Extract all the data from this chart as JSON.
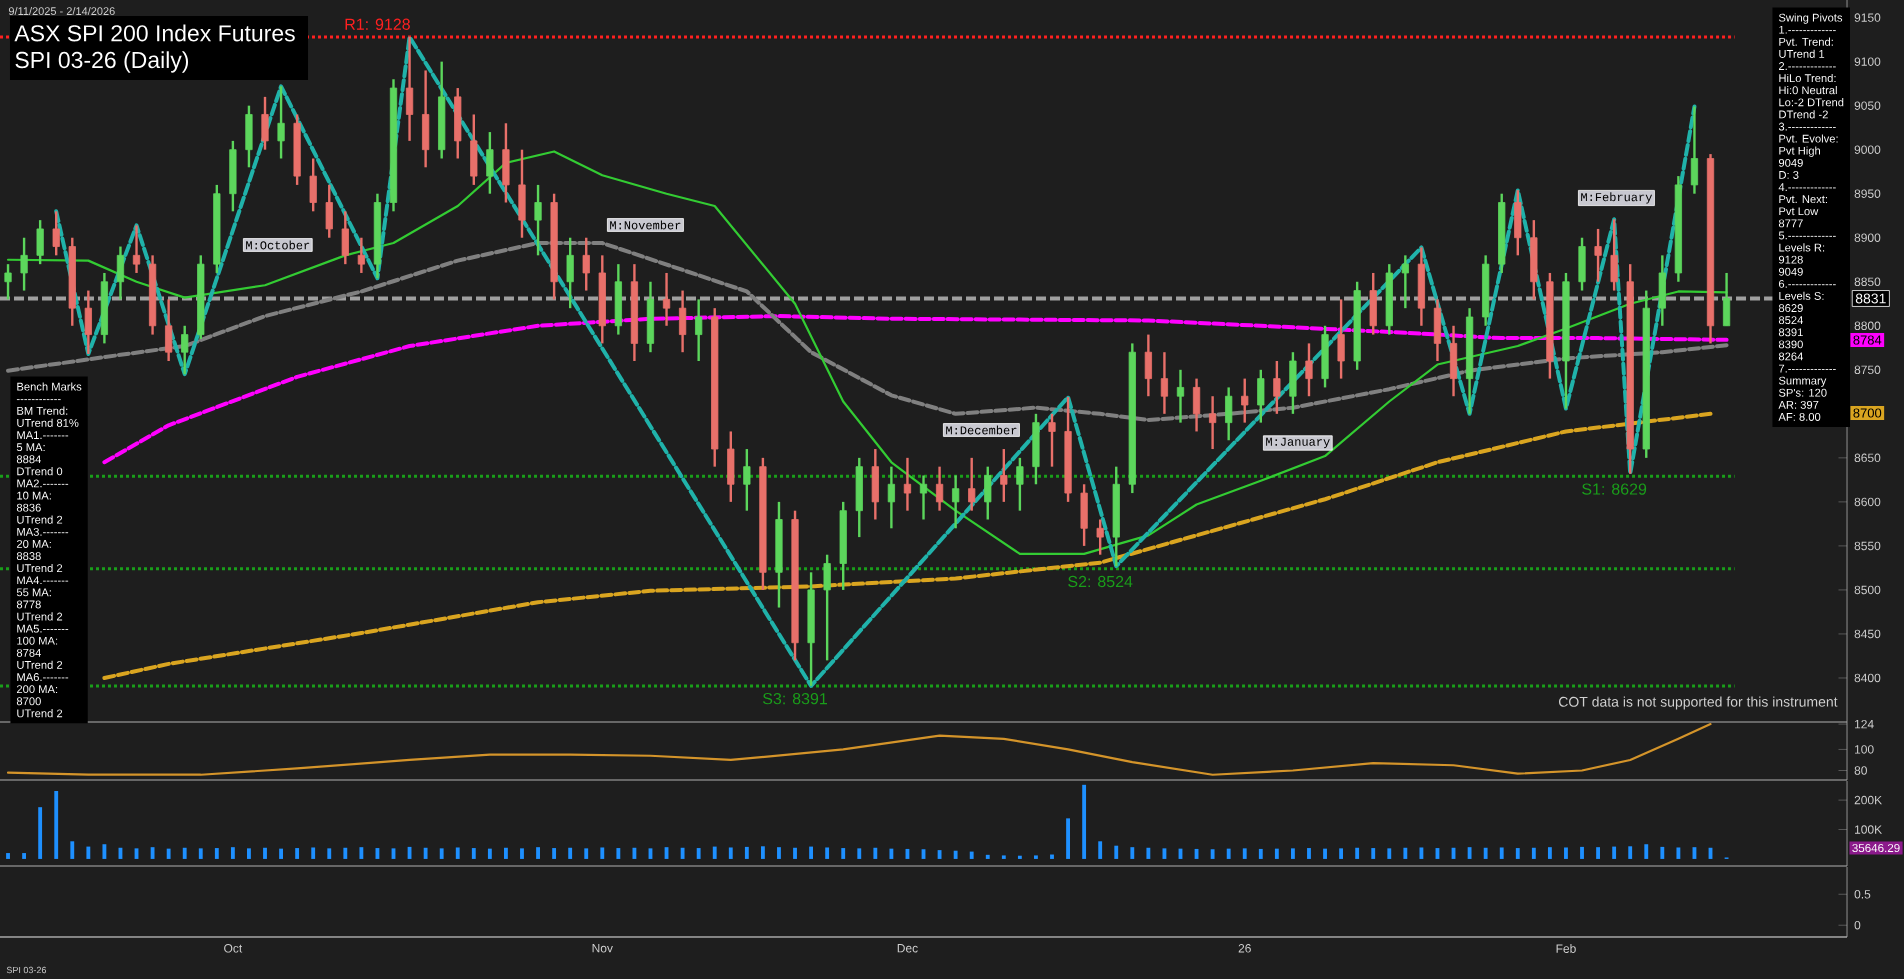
{
  "chart_data": [
    {
      "type": "candlestick",
      "title": "ASX SPI 200 Index Futures",
      "subtitle": "SPI 03-26 (Daily)",
      "categories": [
        null,
        null,
        null,
        null,
        null,
        null,
        null,
        null,
        null,
        null,
        null,
        null,
        null,
        null,
        null,
        null,
        null,
        null,
        null,
        null,
        null,
        null,
        null,
        null,
        null,
        null,
        null,
        null,
        null,
        null,
        null,
        null,
        null,
        null,
        null,
        null,
        null,
        null,
        null,
        null,
        null,
        null,
        null,
        null,
        null,
        null,
        null,
        null,
        null,
        null,
        null,
        null,
        null,
        null,
        null,
        null,
        null,
        null,
        null,
        null,
        null,
        null,
        null,
        null,
        null,
        null,
        null,
        null,
        null,
        null,
        null,
        null,
        null,
        null,
        null,
        null,
        null,
        null,
        null,
        null,
        null,
        null,
        null,
        null,
        null,
        null,
        null,
        null,
        null,
        null,
        null,
        null,
        null,
        null,
        null,
        null,
        null,
        null,
        null,
        null,
        null,
        null,
        null,
        null,
        null,
        null,
        null,
        null,
        null,
        null,
        null,
        null,
        null,
        null,
        null
      ],
      "ohlc": [
        [
          8850,
          8870,
          8830,
          8860
        ],
        [
          8860,
          8900,
          8840,
          8880
        ],
        [
          8880,
          8920,
          8870,
          8910
        ],
        [
          8910,
          8930,
          8880,
          8890
        ],
        [
          8890,
          8900,
          8800,
          8820
        ],
        [
          8820,
          8840,
          8768,
          8790
        ],
        [
          8790,
          8860,
          8780,
          8850
        ],
        [
          8850,
          8890,
          8830,
          8880
        ],
        [
          8880,
          8914,
          8860,
          8870
        ],
        [
          8870,
          8880,
          8790,
          8800
        ],
        [
          8800,
          8830,
          8760,
          8770
        ],
        [
          8770,
          8800,
          8745,
          8790
        ],
        [
          8790,
          8880,
          8785,
          8870
        ],
        [
          8870,
          8960,
          8860,
          8950
        ],
        [
          8950,
          9010,
          8930,
          9000
        ],
        [
          9000,
          9050,
          8980,
          9040
        ],
        [
          9040,
          9060,
          9000,
          9010
        ],
        [
          9010,
          9072,
          8990,
          9030
        ],
        [
          9030,
          9040,
          8960,
          8970
        ],
        [
          8970,
          8990,
          8930,
          8940
        ],
        [
          8940,
          8960,
          8900,
          8910
        ],
        [
          8910,
          8930,
          8870,
          8880
        ],
        [
          8880,
          8900,
          8860,
          8870
        ],
        [
          8870,
          8950,
          8854,
          8940
        ],
        [
          8940,
          9080,
          8930,
          9070
        ],
        [
          9070,
          9128,
          9010,
          9040
        ],
        [
          9040,
          9090,
          8980,
          9000
        ],
        [
          9000,
          9100,
          8990,
          9060
        ],
        [
          9060,
          9070,
          8990,
          9010
        ],
        [
          9010,
          9040,
          8960,
          8970
        ],
        [
          8970,
          9020,
          8950,
          9000
        ],
        [
          9000,
          9030,
          8940,
          8960
        ],
        [
          8960,
          9000,
          8900,
          8920
        ],
        [
          8920,
          8960,
          8880,
          8940
        ],
        [
          8940,
          8950,
          8830,
          8850
        ],
        [
          8850,
          8900,
          8820,
          8880
        ],
        [
          8880,
          8900,
          8840,
          8860
        ],
        [
          8860,
          8880,
          8780,
          8800
        ],
        [
          8800,
          8870,
          8790,
          8850
        ],
        [
          8850,
          8870,
          8760,
          8780
        ],
        [
          8780,
          8850,
          8770,
          8830
        ],
        [
          8830,
          8860,
          8800,
          8820
        ],
        [
          8820,
          8840,
          8770,
          8790
        ],
        [
          8790,
          8830,
          8760,
          8810
        ],
        [
          8810,
          8820,
          8640,
          8660
        ],
        [
          8660,
          8680,
          8600,
          8620
        ],
        [
          8620,
          8660,
          8590,
          8640
        ],
        [
          8640,
          8650,
          8500,
          8520
        ],
        [
          8520,
          8600,
          8480,
          8580
        ],
        [
          8580,
          8590,
          8420,
          8440
        ],
        [
          8440,
          8520,
          8391,
          8500
        ],
        [
          8500,
          8540,
          8420,
          8530
        ],
        [
          8530,
          8600,
          8500,
          8590
        ],
        [
          8590,
          8650,
          8560,
          8640
        ],
        [
          8640,
          8660,
          8580,
          8600
        ],
        [
          8600,
          8640,
          8570,
          8620
        ],
        [
          8620,
          8650,
          8590,
          8610
        ],
        [
          8610,
          8630,
          8580,
          8620
        ],
        [
          8620,
          8640,
          8590,
          8600
        ],
        [
          8600,
          8630,
          8570,
          8615
        ],
        [
          8615,
          8650,
          8590,
          8600
        ],
        [
          8600,
          8640,
          8580,
          8630
        ],
        [
          8630,
          8660,
          8600,
          8620
        ],
        [
          8620,
          8650,
          8590,
          8640
        ],
        [
          8640,
          8700,
          8620,
          8690
        ],
        [
          8690,
          8700,
          8640,
          8680
        ],
        [
          8680,
          8719,
          8600,
          8610
        ],
        [
          8610,
          8620,
          8550,
          8570
        ],
        [
          8570,
          8580,
          8540,
          8560
        ],
        [
          8560,
          8640,
          8527,
          8620
        ],
        [
          8620,
          8780,
          8610,
          8770
        ],
        [
          8770,
          8790,
          8720,
          8740
        ],
        [
          8740,
          8770,
          8700,
          8720
        ],
        [
          8720,
          8750,
          8690,
          8730
        ],
        [
          8730,
          8740,
          8680,
          8700
        ],
        [
          8700,
          8720,
          8660,
          8690
        ],
        [
          8690,
          8730,
          8670,
          8720
        ],
        [
          8720,
          8740,
          8690,
          8710
        ],
        [
          8710,
          8750,
          8690,
          8740
        ],
        [
          8740,
          8760,
          8700,
          8720
        ],
        [
          8720,
          8770,
          8700,
          8760
        ],
        [
          8760,
          8780,
          8720,
          8740
        ],
        [
          8740,
          8800,
          8730,
          8790
        ],
        [
          8790,
          8830,
          8740,
          8760
        ],
        [
          8760,
          8850,
          8750,
          8840
        ],
        [
          8840,
          8860,
          8790,
          8800
        ],
        [
          8800,
          8870,
          8790,
          8860
        ],
        [
          8860,
          8880,
          8820,
          8870
        ],
        [
          8870,
          8889,
          8800,
          8820
        ],
        [
          8820,
          8830,
          8760,
          8780
        ],
        [
          8780,
          8800,
          8720,
          8740
        ],
        [
          8740,
          8820,
          8700,
          8810
        ],
        [
          8810,
          8880,
          8800,
          8870
        ],
        [
          8870,
          8950,
          8860,
          8940
        ],
        [
          8940,
          8954,
          8880,
          8900
        ],
        [
          8900,
          8920,
          8830,
          8850
        ],
        [
          8850,
          8860,
          8740,
          8760
        ],
        [
          8760,
          8860,
          8706,
          8850
        ],
        [
          8850,
          8900,
          8840,
          8890
        ],
        [
          8890,
          8910,
          8850,
          8880
        ],
        [
          8880,
          8921,
          8840,
          8850
        ],
        [
          8850,
          8870,
          8632,
          8660
        ],
        [
          8660,
          8840,
          8650,
          8820
        ],
        [
          8820,
          8880,
          8800,
          8860
        ],
        [
          8860,
          8970,
          8850,
          8960
        ],
        [
          8960,
          9049,
          8950,
          8990
        ],
        [
          8990,
          8995,
          8780,
          8800
        ],
        [
          8800,
          8860,
          8800,
          8831
        ],
        null,
        null,
        null,
        null,
        null,
        null,
        null
      ],
      "ylim": [
        8350,
        9170
      ],
      "yticks": [
        8400,
        8450,
        8500,
        8550,
        8600,
        8650,
        8750,
        8800,
        8850,
        8900,
        8950,
        9000,
        9050,
        9100,
        9150
      ],
      "tick_labels": "y",
      "series": [
        {
          "type": "line",
          "color": "#daa520",
          "line_style": "dashed",
          "values": [
            null,
            null,
            null,
            null,
            null,
            null,
            8400,
            null,
            null,
            null,
            8416,
            null,
            null,
            null,
            null,
            null,
            null,
            null,
            null,
            null,
            null,
            null,
            8451,
            null,
            null,
            null,
            null,
            null,
            null,
            null,
            null,
            null,
            null,
            8486,
            null,
            null,
            null,
            null,
            null,
            null,
            8499,
            null,
            null,
            null,
            null,
            null,
            null,
            null,
            null,
            null,
            8504,
            null,
            null,
            null,
            null,
            null,
            null,
            null,
            null,
            8513,
            null,
            null,
            null,
            null,
            null,
            null,
            null,
            null,
            8531,
            null,
            null,
            null,
            null,
            null,
            8562,
            null,
            null,
            null,
            null,
            null,
            null,
            null,
            8603,
            null,
            null,
            null,
            null,
            null,
            null,
            8645,
            null,
            null,
            null,
            null,
            null,
            null,
            null,
            8680,
            null,
            null,
            null,
            null,
            null,
            null,
            null,
            null,
            8700,
            null,
            null,
            null,
            null,
            null,
            null,
            null,
            null
          ]
        },
        {
          "type": "line",
          "color": "#ff00ff",
          "line_style": "dashed",
          "values": [
            null,
            null,
            null,
            null,
            null,
            null,
            8645,
            null,
            null,
            null,
            8687,
            null,
            null,
            null,
            null,
            null,
            null,
            null,
            8742,
            null,
            null,
            null,
            null,
            null,
            null,
            8777,
            null,
            null,
            null,
            null,
            null,
            null,
            null,
            8800,
            null,
            null,
            null,
            null,
            null,
            null,
            8808,
            null,
            null,
            null,
            null,
            null,
            null,
            null,
            8811,
            null,
            null,
            null,
            null,
            null,
            null,
            8808,
            null,
            null,
            null,
            null,
            null,
            null,
            null,
            8807,
            null,
            null,
            null,
            null,
            null,
            null,
            null,
            8806,
            null,
            null,
            null,
            null,
            null,
            null,
            8800,
            null,
            null,
            null,
            null,
            null,
            null,
            null,
            8793,
            null,
            null,
            null,
            null,
            null,
            null,
            8786,
            null,
            null,
            null,
            null,
            null,
            8786,
            null,
            null,
            null,
            null,
            null,
            null,
            null,
            8784,
            null,
            null,
            null,
            null,
            null,
            null,
            null
          ]
        },
        {
          "type": "line",
          "color": "#808080",
          "line_style": "dashed",
          "values": [
            8749,
            null,
            null,
            null,
            null,
            null,
            null,
            8767,
            null,
            null,
            null,
            8777,
            null,
            null,
            null,
            null,
            8811,
            null,
            null,
            null,
            null,
            null,
            8839,
            null,
            null,
            null,
            null,
            null,
            8874,
            null,
            null,
            null,
            null,
            8894,
            null,
            null,
            null,
            8894,
            null,
            null,
            null,
            null,
            null,
            null,
            null,
            null,
            8839,
            null,
            null,
            null,
            8770,
            null,
            null,
            null,
            null,
            8721,
            null,
            null,
            null,
            8700,
            null,
            null,
            null,
            null,
            8707,
            null,
            null,
            null,
            8700,
            null,
            null,
            8693,
            null,
            null,
            null,
            null,
            8700,
            null,
            null,
            null,
            8707,
            null,
            null,
            null,
            null,
            null,
            8728,
            null,
            null,
            null,
            null,
            8749,
            null,
            null,
            null,
            null,
            null,
            8763,
            null,
            null,
            null,
            null,
            null,
            8770,
            null,
            null,
            null,
            8778,
            null,
            null,
            null,
            null,
            null,
            null,
            null
          ]
        },
        {
          "type": "line",
          "color": "#33cc33",
          "line_style": "solid",
          "values": [
            8875,
            null,
            null,
            null,
            null,
            8874,
            null,
            null,
            8850,
            null,
            null,
            8832,
            null,
            null,
            null,
            null,
            8846,
            null,
            null,
            null,
            null,
            8880,
            null,
            null,
            8894,
            null,
            null,
            null,
            8936,
            null,
            null,
            8985,
            null,
            null,
            8998,
            null,
            null,
            8971,
            null,
            null,
            null,
            8950,
            null,
            null,
            8936,
            null,
            null,
            null,
            null,
            8825,
            null,
            null,
            8714,
            null,
            null,
            8645,
            null,
            null,
            null,
            8590,
            null,
            null,
            null,
            8541,
            null,
            null,
            null,
            8541,
            null,
            null,
            null,
            8562,
            null,
            null,
            8597,
            null,
            null,
            null,
            8624,
            null,
            null,
            null,
            8652,
            null,
            null,
            null,
            8714,
            null,
            null,
            8756,
            null,
            null,
            null,
            null,
            8777,
            null,
            null,
            8797,
            null,
            null,
            null,
            8825,
            null,
            null,
            8839,
            null,
            null,
            8838,
            null,
            null,
            null,
            null,
            null,
            null,
            null
          ]
        },
        {
          "type": "line",
          "color": "#20b2aa",
          "line_style": "dashed",
          "values": [
            null,
            null,
            null,
            8930,
            null,
            8768,
            null,
            null,
            8914,
            null,
            null,
            8745,
            null,
            null,
            null,
            null,
            null,
            9072,
            null,
            null,
            null,
            null,
            null,
            8854,
            null,
            9128,
            null,
            null,
            null,
            null,
            null,
            null,
            null,
            null,
            null,
            null,
            null,
            null,
            null,
            null,
            null,
            null,
            null,
            null,
            null,
            null,
            null,
            null,
            null,
            null,
            8391,
            null,
            null,
            null,
            null,
            null,
            null,
            null,
            null,
            null,
            null,
            null,
            null,
            null,
            null,
            null,
            8719,
            null,
            null,
            8527,
            null,
            null,
            null,
            null,
            null,
            null,
            null,
            null,
            null,
            null,
            null,
            null,
            null,
            null,
            null,
            null,
            null,
            null,
            8889,
            null,
            null,
            8700,
            null,
            null,
            8954,
            null,
            null,
            8706,
            null,
            null,
            8921,
            8632,
            null,
            null,
            null,
            9049,
            null,
            null,
            null,
            null,
            null,
            null,
            null,
            null,
            null
          ]
        }
      ],
      "ref_lines": [
        {
          "axis": "y",
          "value": 9128,
          "label": "R1: 9128",
          "color": "#ff2020",
          "line_style": "dotted"
        },
        {
          "axis": "y",
          "value": 8629,
          "label": "S1: 8629",
          "color": "#1a9e1a",
          "line_style": "dotted"
        },
        {
          "axis": "y",
          "value": 8524,
          "label": "S2: 8524",
          "color": "#1a9e1a",
          "line_style": "dotted"
        },
        {
          "axis": "y",
          "value": 8391,
          "label": "S3: 8391",
          "color": "#1a9e1a",
          "line_style": "dotted"
        },
        {
          "axis": "y",
          "value": 8831,
          "label": "8831",
          "color": "#a0a0a0",
          "line_style": "dashed"
        }
      ],
      "annotations": [
        "9/11/2025 - 2/14/2026",
        "COT data is not supported for this instrument",
        "SPI 03-26",
        "M:October",
        "M:November",
        "M:December",
        "M:January",
        "M:February",
        "8784",
        "8700"
      ]
    },
    {
      "type": "line",
      "categories": [
        null,
        null,
        null,
        null,
        null,
        null,
        null,
        null,
        null,
        null,
        null,
        null,
        null,
        null,
        null,
        null,
        null,
        null,
        null,
        null,
        null,
        null,
        null,
        null,
        null,
        null,
        null,
        null,
        null,
        null,
        null,
        null,
        null,
        null,
        null,
        null,
        null,
        null,
        null,
        null,
        null,
        null,
        null,
        null,
        null,
        null,
        null,
        null,
        null,
        null,
        null,
        null,
        null,
        null,
        null,
        null,
        null,
        null,
        null,
        null,
        null,
        null,
        null,
        null,
        null,
        null,
        null,
        null,
        null,
        null,
        null,
        null,
        null,
        null,
        null,
        null,
        null,
        null,
        null,
        null,
        null,
        null,
        null,
        null,
        null,
        null,
        null,
        null,
        null,
        null,
        null,
        null,
        null,
        null,
        null,
        null,
        null,
        null,
        null,
        null,
        null,
        null,
        null,
        null,
        null,
        null,
        null,
        null,
        null,
        null,
        null,
        null,
        null,
        null,
        null
      ],
      "ylim": [
        71,
        126
      ],
      "yticks": [
        80,
        100,
        124
      ],
      "tick_labels": "y",
      "series": [
        {
          "type": "line",
          "color": "#d4942a",
          "values": [
            78,
            null,
            null,
            null,
            null,
            76,
            null,
            null,
            null,
            null,
            null,
            null,
            76,
            null,
            null,
            null,
            null,
            null,
            82,
            null,
            null,
            null,
            null,
            null,
            null,
            90,
            null,
            null,
            null,
            null,
            95,
            null,
            null,
            null,
            null,
            95,
            null,
            null,
            null,
            null,
            94,
            null,
            null,
            null,
            null,
            90,
            null,
            null,
            null,
            null,
            null,
            null,
            100,
            null,
            null,
            null,
            null,
            null,
            113,
            null,
            null,
            null,
            110,
            null,
            null,
            null,
            100,
            null,
            null,
            null,
            88,
            null,
            null,
            null,
            null,
            76,
            null,
            null,
            null,
            null,
            80,
            null,
            null,
            null,
            null,
            87,
            null,
            null,
            null,
            null,
            85,
            null,
            null,
            null,
            77,
            null,
            null,
            null,
            80,
            null,
            null,
            90,
            null,
            null,
            110,
            null,
            124,
            null,
            null,
            null,
            null,
            null,
            null,
            null,
            null
          ]
        }
      ]
    },
    {
      "type": "bar",
      "categories": [
        null,
        null,
        null,
        null,
        null,
        null,
        null,
        null,
        null,
        null,
        null,
        null,
        null,
        null,
        null,
        null,
        null,
        null,
        null,
        null,
        null,
        null,
        null,
        null,
        null,
        null,
        null,
        null,
        null,
        null,
        null,
        null,
        null,
        null,
        null,
        null,
        null,
        null,
        null,
        null,
        null,
        null,
        null,
        null,
        null,
        null,
        null,
        null,
        null,
        null,
        null,
        null,
        null,
        null,
        null,
        null,
        null,
        null,
        null,
        null,
        null,
        null,
        null,
        null,
        null,
        null,
        null,
        null,
        null,
        null,
        null,
        null,
        null,
        null,
        null,
        null,
        null,
        null,
        null,
        null,
        null,
        null,
        null,
        null,
        null,
        null,
        null,
        null,
        null,
        null,
        null,
        null,
        null,
        null,
        null,
        null,
        null,
        null,
        null,
        null,
        null,
        null,
        null,
        null,
        null,
        null,
        null,
        null,
        null,
        null,
        null,
        null,
        null,
        null,
        null
      ],
      "values": [
        20000,
        20000,
        176000,
        231000,
        60000,
        42000,
        50000,
        38000,
        36000,
        40000,
        35000,
        38000,
        36000,
        37000,
        40000,
        36000,
        38000,
        35000,
        37000,
        39000,
        36000,
        38000,
        40000,
        37000,
        36000,
        41000,
        38000,
        36000,
        39000,
        37000,
        35000,
        38000,
        36000,
        40000,
        37000,
        38000,
        36000,
        39000,
        37000,
        38000,
        36000,
        40000,
        38000,
        37000,
        42000,
        39000,
        41000,
        43000,
        40000,
        38000,
        42000,
        39000,
        37000,
        36000,
        38000,
        35000,
        34000,
        33000,
        30000,
        28000,
        25000,
        14000,
        12000,
        11000,
        12000,
        15000,
        138000,
        252000,
        60000,
        45000,
        40000,
        38000,
        36000,
        35000,
        34000,
        33000,
        35000,
        36000,
        34000,
        35000,
        36000,
        37000,
        35000,
        36000,
        38000,
        37000,
        36000,
        38000,
        39000,
        37000,
        38000,
        40000,
        38000,
        39000,
        37000,
        38000,
        40000,
        39000,
        41000,
        40000,
        42000,
        43000,
        50000,
        41000,
        39000,
        40000,
        38000,
        5000,
        null,
        null,
        null,
        null,
        null,
        null,
        null
      ],
      "color": "#1e90ff",
      "ylim": [
        -24000,
        265000
      ],
      "yticks": [
        {
          "value": 100000,
          "label": "100K"
        },
        {
          "value": 200000,
          "label": "200K"
        }
      ],
      "tick_labels": "y",
      "annotations": [
        "35646.29"
      ]
    },
    {
      "type": "line",
      "categories": [
        null,
        null,
        null,
        null,
        null,
        null,
        null,
        null,
        null,
        null,
        null,
        null,
        null,
        null,
        "Oct",
        null,
        null,
        null,
        null,
        null,
        null,
        null,
        null,
        null,
        null,
        null,
        null,
        null,
        null,
        null,
        null,
        null,
        null,
        null,
        null,
        null,
        null,
        "Nov",
        null,
        null,
        null,
        null,
        null,
        null,
        null,
        null,
        null,
        null,
        null,
        null,
        null,
        null,
        null,
        null,
        null,
        null,
        "Dec",
        null,
        null,
        null,
        null,
        null,
        null,
        null,
        null,
        null,
        null,
        null,
        null,
        null,
        null,
        null,
        null,
        null,
        null,
        null,
        null,
        "26",
        null,
        null,
        null,
        null,
        null,
        null,
        null,
        null,
        null,
        null,
        null,
        null,
        null,
        null,
        null,
        null,
        null,
        null,
        null,
        "Feb",
        null,
        null,
        null,
        null,
        null,
        null,
        null,
        null,
        null,
        null,
        null,
        null,
        null,
        null,
        null,
        null,
        null
      ],
      "ylim": [
        -0.19,
        0.94
      ],
      "yticks": [
        0,
        0.5
      ]
    },
    {
      "type": "other",
      "title": "Bench Marks",
      "annotations": [
        "------------",
        "BM Trend:",
        "UTrend 81%",
        "MA1.-------",
        "5 MA:",
        "8884",
        "DTrend 0",
        "MA2.-------",
        "10 MA:",
        "8836",
        "UTrend 2",
        "MA3.-------",
        "20 MA:",
        "8838",
        "UTrend 2",
        "MA4.-------",
        "55 MA:",
        "8778",
        "UTrend 2",
        "MA5.-------",
        "100 MA:",
        "8784",
        "UTrend 2",
        "MA6.-------",
        "200 MA:",
        "8700",
        "UTrend 2"
      ]
    },
    {
      "type": "other",
      "title": "Swing Pivots",
      "annotations": [
        "1.-------------",
        "Pvt. Trend:",
        "UTrend 1",
        "2.-------------",
        "HiLo Trend:",
        "Hi:0 Neutral",
        "Lo:-2 DTrend",
        "DTrend -2",
        "3.-------------",
        "Pvt. Evolve:",
        "Pvt High",
        "9049",
        "D: 3",
        "4.-------------",
        "Pvt. Next:",
        "Pvt Low",
        "8777",
        "5.-------------",
        "Levels R:",
        "9128",
        "9049",
        "6.-------------",
        "Levels S:",
        "8629",
        "8524",
        "8391",
        "8390",
        "8264",
        "7.-------------",
        "Summary",
        "SP's: 120",
        "AR: 397",
        "AF: 8.00"
      ]
    }
  ]
}
